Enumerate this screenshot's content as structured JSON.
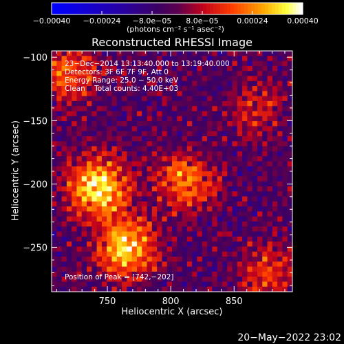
{
  "chart_data": {
    "type": "heatmap",
    "title": "Reconstructed RHESSI Image",
    "xlabel": "Heliocentric X (arcsec)",
    "ylabel": "Heliocentric Y (arcsec)",
    "xlim": [
      706,
      896
    ],
    "ylim": [
      -285,
      -95
    ],
    "x_ticks": [
      750,
      800,
      850
    ],
    "y_ticks": [
      -100,
      -150,
      -200,
      -250
    ],
    "x_tick_labels": [
      "750",
      "800",
      "850"
    ],
    "y_tick_labels": [
      "−100",
      "−150",
      "−200",
      "−250"
    ],
    "colorbar": {
      "range": [
        -0.0004,
        0.0004
      ],
      "ticks": [
        -0.0004,
        -0.00024,
        -8e-05,
        8e-05,
        0.00024,
        0.0004
      ],
      "tick_labels": [
        "−0.00040",
        "−0.00024",
        "−8.0e−05",
        "8.0e−05",
        "0.00024",
        "0.00040"
      ],
      "units": "(photons cm⁻² s⁻¹ asec⁻²)"
    },
    "annotations": [
      "23−Dec−2014 13:13:40.000 to 13:19:40.000",
      "Detectors: 3F 6F 7F 9F, Att 0",
      "Energy Range: 25.0 − 50.0 keV",
      "Clean    Total counts: 4.40E+03"
    ],
    "peak_label": "Position of Peak = [742,−202]",
    "peak": [
      742,
      -202
    ],
    "sources": [
      {
        "x": 742,
        "y": -202,
        "amp": 1.0
      },
      {
        "x": 765,
        "y": -250,
        "amp": 0.9
      },
      {
        "x": 812,
        "y": -198,
        "amp": 0.65
      },
      {
        "x": 720,
        "y": -112,
        "amp": 0.55
      },
      {
        "x": 868,
        "y": -140,
        "amp": 0.35
      },
      {
        "x": 878,
        "y": -270,
        "amp": 0.45
      }
    ]
  },
  "timestamp": "20−May−2022 23:02",
  "colors": {
    "background": "#000000",
    "axis": "#ffffff",
    "negative_end": "#0000ff",
    "positive_end": "#ffffff"
  }
}
